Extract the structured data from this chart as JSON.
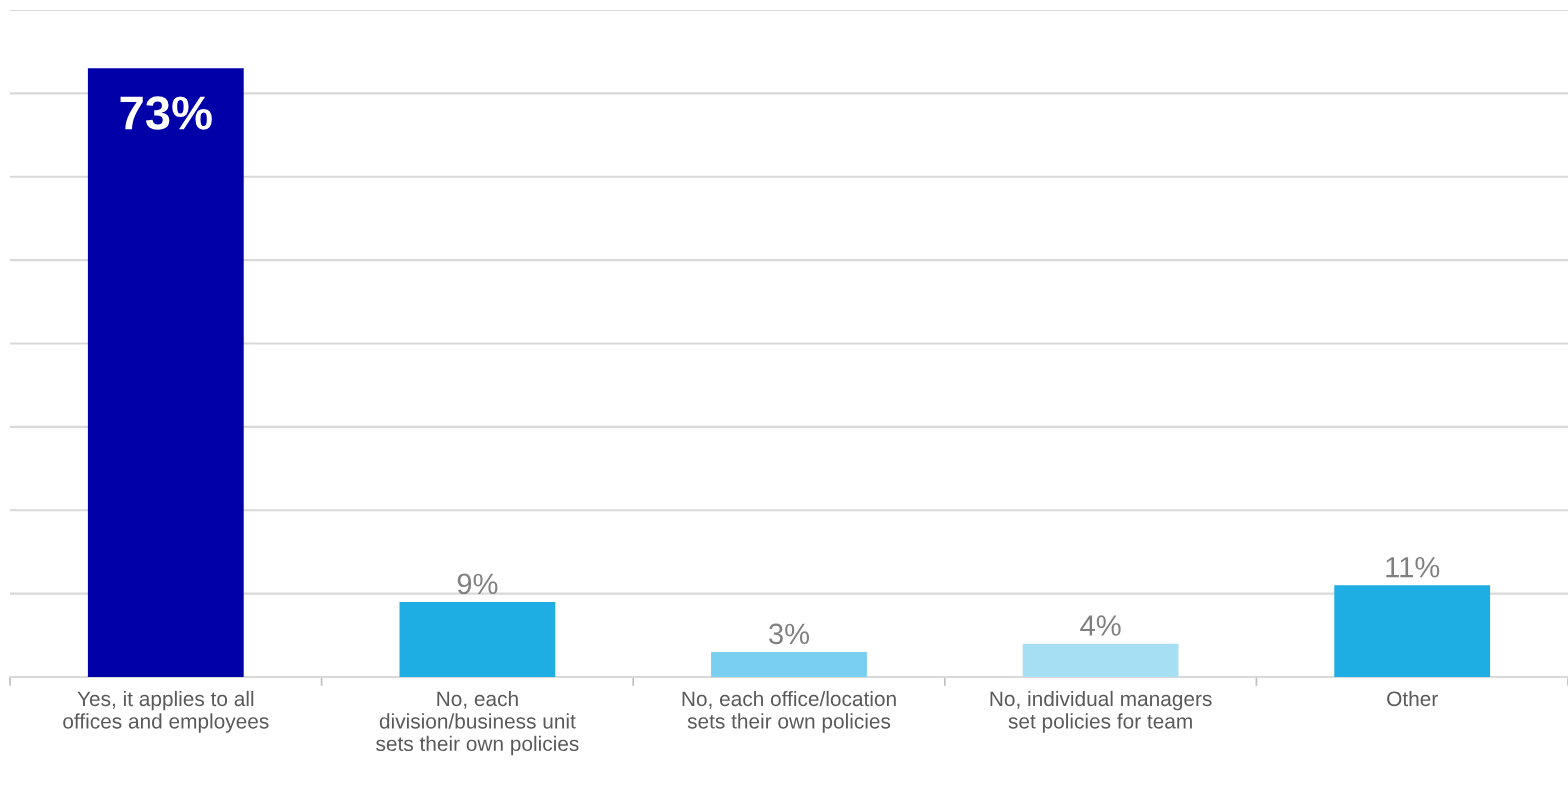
{
  "chart_data": {
    "type": "bar",
    "categories": [
      "Yes, it applies to all\noffices and employees",
      "No, each\ndivision/business unit\nsets their own policies",
      "No, each office/location\nsets their own policies",
      "No, individual managers\nset policies for team",
      "Other"
    ],
    "values": [
      73,
      9,
      3,
      4,
      11
    ],
    "value_labels": [
      "73%",
      "9%",
      "3%",
      "4%",
      "11%"
    ],
    "colors": [
      "#0000a8",
      "#1eaee4",
      "#78cff0",
      "#a6def4",
      "#1eaee4"
    ],
    "ylim": [
      0,
      80
    ],
    "yticks": [
      {
        "value": 0,
        "label": null
      },
      {
        "value": 10,
        "label": null
      },
      {
        "value": 20,
        "label": null
      },
      {
        "value": 30,
        "label": null
      },
      {
        "value": 40,
        "label": null
      },
      {
        "value": 50,
        "label": null
      },
      {
        "value": 60,
        "label": null
      },
      {
        "value": 70,
        "label": null
      },
      {
        "value": 80,
        "label": null
      }
    ],
    "grid": "y",
    "tick_labels": "x"
  }
}
